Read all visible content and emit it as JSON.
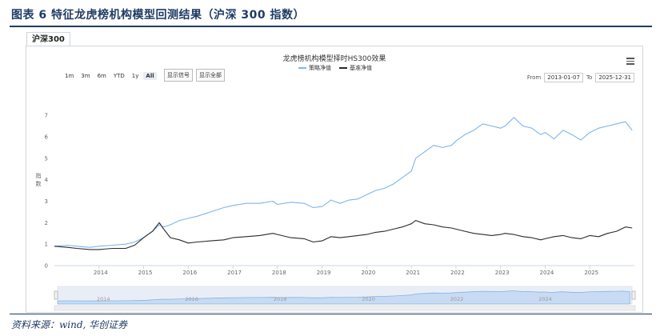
{
  "figure_title": "图表 6   特征龙虎榜机构模型回测结果（沪深 300 指数）",
  "tab_label": "沪深300",
  "source": "资料来源：wind, 华创证券",
  "colors": {
    "strategy": "#7cb5ec",
    "benchmark": "#2b2b2b",
    "accent": "#1f3b63"
  },
  "controls": {
    "zoom_buttons": [
      "1m",
      "3m",
      "6m",
      "YTD",
      "1y",
      "All"
    ],
    "active_zoom": "All",
    "show_signal": "显示信号",
    "show_all": "显示全部",
    "from_label": "From",
    "from_value": "2013-01-07",
    "to_label": "To",
    "to_value": "2025-12-31",
    "menu_icon": "hamburger-menu-icon"
  },
  "chart_data": {
    "type": "line",
    "title": "龙虎榜机构模型择时HS300效果",
    "xlabel": "",
    "ylabel": "指数",
    "ylim": [
      0,
      7.6
    ],
    "xlim": [
      2013.0,
      2026.0
    ],
    "y_ticks": [
      0,
      1,
      2,
      3,
      4,
      5,
      6,
      7
    ],
    "x_ticks": [
      "2014",
      "2015",
      "2016",
      "2017",
      "2018",
      "2019",
      "2020",
      "2021",
      "2022",
      "2023",
      "2024",
      "2025"
    ],
    "series": [
      {
        "name": "策略净值",
        "x": [
          2013.0,
          2013.3,
          2013.5,
          2013.8,
          2014.0,
          2014.3,
          2014.6,
          2014.8,
          2015.0,
          2015.2,
          2015.35,
          2015.45,
          2015.6,
          2015.8,
          2016.0,
          2016.2,
          2016.5,
          2016.8,
          2017.0,
          2017.3,
          2017.6,
          2017.9,
          2018.0,
          2018.3,
          2018.6,
          2018.8,
          2019.0,
          2019.2,
          2019.4,
          2019.6,
          2019.8,
          2020.0,
          2020.2,
          2020.4,
          2020.6,
          2020.8,
          2021.0,
          2021.1,
          2021.3,
          2021.5,
          2021.7,
          2021.9,
          2022.0,
          2022.2,
          2022.4,
          2022.6,
          2022.8,
          2023.0,
          2023.1,
          2023.3,
          2023.5,
          2023.7,
          2023.9,
          2024.0,
          2024.2,
          2024.4,
          2024.6,
          2024.8,
          2025.0,
          2025.2,
          2025.4,
          2025.6,
          2025.8,
          2025.95
        ],
        "values": [
          0.9,
          0.95,
          0.9,
          0.85,
          0.9,
          0.95,
          1.0,
          1.1,
          1.3,
          1.6,
          1.9,
          1.8,
          1.9,
          2.1,
          2.2,
          2.3,
          2.5,
          2.7,
          2.8,
          2.9,
          2.9,
          3.0,
          2.85,
          2.95,
          2.9,
          2.7,
          2.75,
          3.05,
          2.9,
          3.05,
          3.1,
          3.3,
          3.5,
          3.6,
          3.8,
          4.1,
          4.4,
          5.0,
          5.3,
          5.6,
          5.5,
          5.6,
          5.8,
          6.1,
          6.3,
          6.6,
          6.5,
          6.4,
          6.5,
          6.9,
          6.5,
          6.4,
          6.1,
          6.2,
          5.9,
          6.3,
          6.1,
          5.85,
          6.2,
          6.4,
          6.5,
          6.6,
          6.7,
          6.3
        ]
      },
      {
        "name": "基准净值",
        "x": [
          2013.0,
          2013.3,
          2013.5,
          2013.8,
          2014.0,
          2014.3,
          2014.6,
          2014.8,
          2015.0,
          2015.2,
          2015.35,
          2015.45,
          2015.6,
          2015.8,
          2016.0,
          2016.2,
          2016.5,
          2016.8,
          2017.0,
          2017.3,
          2017.6,
          2017.9,
          2018.0,
          2018.3,
          2018.6,
          2018.8,
          2019.0,
          2019.2,
          2019.4,
          2019.6,
          2019.8,
          2020.0,
          2020.2,
          2020.4,
          2020.6,
          2020.8,
          2021.0,
          2021.1,
          2021.3,
          2021.5,
          2021.7,
          2021.9,
          2022.0,
          2022.2,
          2022.4,
          2022.6,
          2022.8,
          2023.0,
          2023.1,
          2023.3,
          2023.5,
          2023.7,
          2023.9,
          2024.0,
          2024.2,
          2024.4,
          2024.6,
          2024.8,
          2025.0,
          2025.2,
          2025.4,
          2025.6,
          2025.8,
          2025.95
        ],
        "values": [
          0.9,
          0.85,
          0.8,
          0.75,
          0.75,
          0.8,
          0.8,
          0.95,
          1.3,
          1.6,
          2.0,
          1.7,
          1.3,
          1.2,
          1.05,
          1.1,
          1.15,
          1.2,
          1.3,
          1.35,
          1.4,
          1.5,
          1.45,
          1.3,
          1.25,
          1.1,
          1.15,
          1.35,
          1.3,
          1.35,
          1.4,
          1.45,
          1.55,
          1.6,
          1.7,
          1.8,
          1.95,
          2.1,
          1.95,
          1.9,
          1.8,
          1.75,
          1.7,
          1.6,
          1.5,
          1.45,
          1.4,
          1.45,
          1.5,
          1.45,
          1.35,
          1.3,
          1.2,
          1.25,
          1.35,
          1.4,
          1.3,
          1.25,
          1.4,
          1.35,
          1.5,
          1.6,
          1.8,
          1.75
        ]
      }
    ],
    "navigator_ticks": [
      "2014",
      "2016",
      "2018",
      "2020",
      "2022",
      "2024"
    ]
  }
}
